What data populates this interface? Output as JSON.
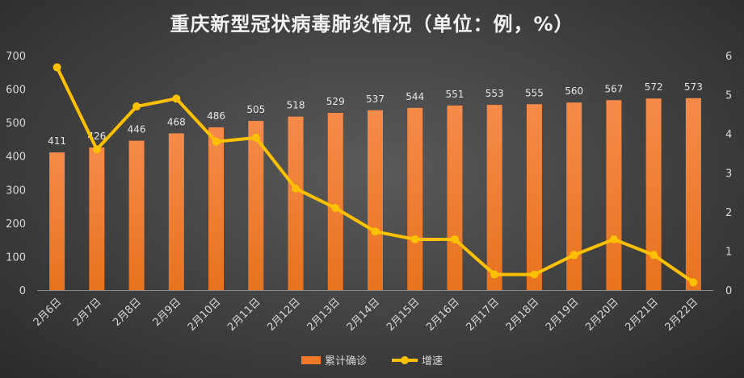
{
  "chart_data": {
    "type": "bar",
    "title": "重庆新型冠状病毒肺炎情况（单位：例，%）",
    "categories": [
      "2月6日",
      "2月7日",
      "2月8日",
      "2月9日",
      "2月10日",
      "2月11日",
      "2月12日",
      "2月13日",
      "2月14日",
      "2月15日",
      "2月16日",
      "2月17日",
      "2月18日",
      "2月19日",
      "2月20日",
      "2月21日",
      "2月22日"
    ],
    "series": [
      {
        "name": "累计确诊",
        "type": "bar",
        "axis": "left",
        "color": "#f07a2a",
        "values": [
          411,
          426,
          446,
          468,
          486,
          505,
          518,
          529,
          537,
          544,
          551,
          553,
          555,
          560,
          567,
          572,
          573
        ]
      },
      {
        "name": "增速",
        "type": "line",
        "axis": "right",
        "color": "#ffc000",
        "values": [
          5.7,
          3.6,
          4.7,
          4.9,
          3.8,
          3.9,
          2.6,
          2.1,
          1.5,
          1.3,
          1.3,
          0.4,
          0.4,
          0.9,
          1.3,
          0.9,
          0.2
        ]
      }
    ],
    "y_left": {
      "min": 0,
      "max": 700,
      "ticks": [
        0,
        100,
        200,
        300,
        400,
        500,
        600,
        700
      ]
    },
    "y_right": {
      "min": 0,
      "max": 6,
      "ticks": [
        0,
        1,
        2,
        3,
        4,
        5,
        6
      ]
    },
    "grid": false,
    "legend_position": "bottom"
  }
}
